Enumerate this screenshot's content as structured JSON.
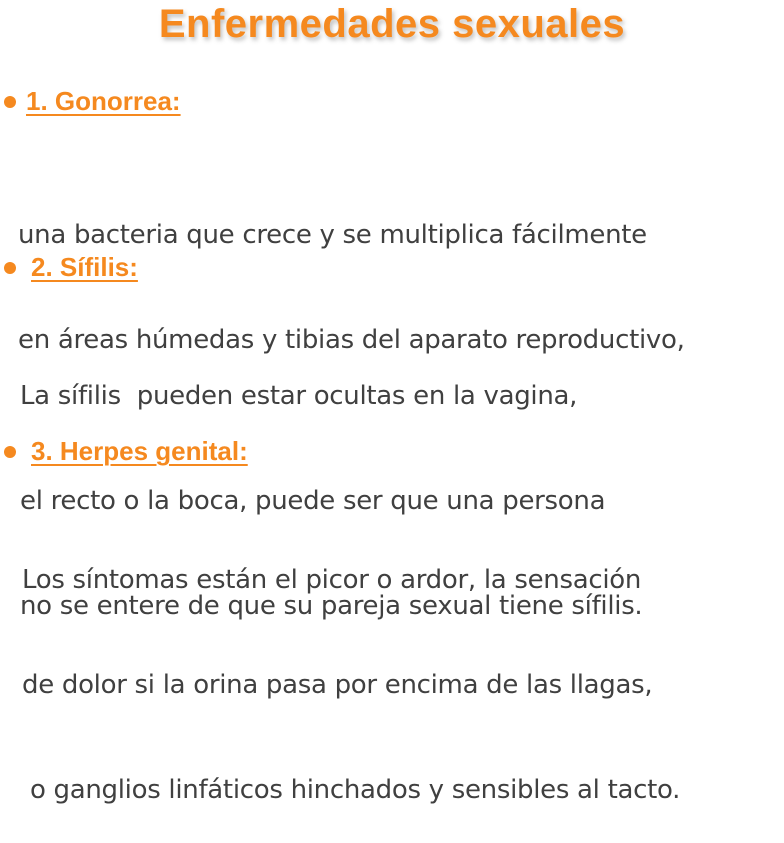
{
  "title": "Enfermedades sexuales",
  "colors": {
    "accent": "#f5891f",
    "body_text": "#404040"
  },
  "sections": [
    {
      "bullet_icon": "bullet-dot",
      "heading": "1. Gonorrea:",
      "lines": [
        "una bacteria que crece y se multiplica fácilmente",
        "en áreas húmedas y tibias del aparato reproductivo,"
      ]
    },
    {
      "bullet_icon": "bullet-dot",
      "heading": "2. Sífilis:",
      "lines": [
        "La sífilis  pueden estar ocultas en la vagina,",
        "el recto o la boca, puede ser que una persona",
        "no se entere de que su pareja sexual tiene sífilis."
      ]
    },
    {
      "bullet_icon": "bullet-dot",
      "heading": "3. Herpes genital:",
      "lines": [
        "Los síntomas están el picor o ardor, la sensación",
        "de dolor si la orina pasa por encima de las llagas,",
        " o ganglios linfáticos hinchados y sensibles al tacto."
      ]
    }
  ]
}
